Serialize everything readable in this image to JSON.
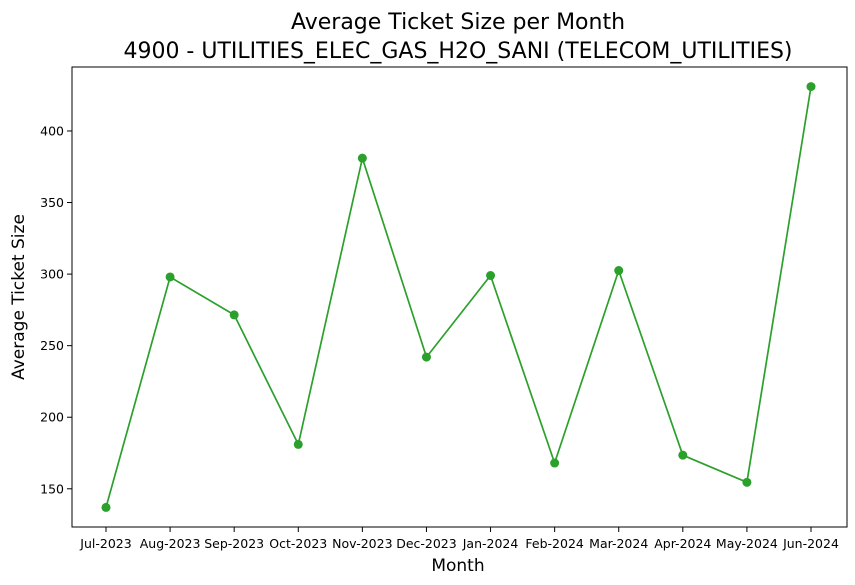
{
  "chart_data": {
    "type": "line",
    "title": "Average Ticket Size per Month",
    "subtitle": "4900 - UTILITIES_ELEC_GAS_H2O_SANI (TELECOM_UTILITIES)",
    "xlabel": "Month",
    "ylabel": "Average Ticket Size",
    "categories": [
      "Jul-2023",
      "Aug-2023",
      "Sep-2023",
      "Oct-2023",
      "Nov-2023",
      "Dec-2023",
      "Jan-2024",
      "Feb-2024",
      "Mar-2024",
      "Apr-2024",
      "May-2024",
      "Jun-2024"
    ],
    "series": [
      {
        "values": [
          137,
          298,
          271.5,
          181,
          381,
          242,
          299,
          168,
          302.5,
          173.5,
          154.5,
          431
        ],
        "color": "#2ca02c",
        "marker": "circle"
      }
    ],
    "ylim": [
      123.3,
      444.7
    ],
    "yticks": [
      150,
      200,
      250,
      300,
      350,
      400
    ],
    "grid": false,
    "legend": "none"
  }
}
